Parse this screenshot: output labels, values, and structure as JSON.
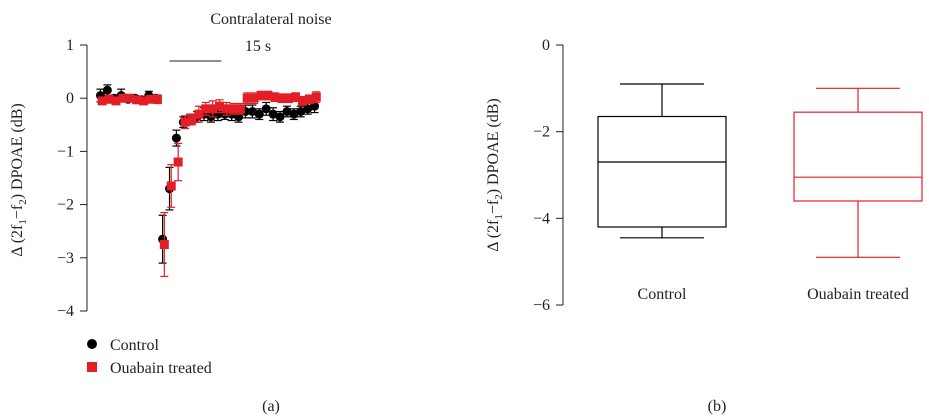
{
  "chart_data": [
    {
      "type": "scatter",
      "panel_label": "(a)",
      "annotation": "Contralateral noise",
      "annotation_duration": "15 s",
      "noise_window": [
        20,
        35
      ],
      "ylabel_parts": [
        "Δ (2f",
        "1",
        "−f",
        "2",
        ") DPOAE (dB)"
      ],
      "ylim": [
        -4,
        1
      ],
      "yticks": [
        1,
        0,
        -1,
        -2,
        -3,
        -4
      ],
      "ytick_labels": [
        "1",
        "0",
        "−1",
        "−2",
        "−3",
        "−4"
      ],
      "xlim": [
        -1,
        63
      ],
      "series": [
        {
          "name": "Control",
          "color": "#000000",
          "marker": "circle",
          "x": [
            0,
            2,
            4,
            6,
            8,
            10,
            12,
            14,
            16,
            18,
            20,
            22,
            24,
            26,
            28,
            30,
            32,
            34,
            36,
            38,
            40,
            42,
            44,
            46,
            48,
            50,
            52,
            54,
            56,
            58,
            60,
            62
          ],
          "y": [
            0.05,
            0.15,
            0.0,
            0.05,
            -0.02,
            0.0,
            -0.03,
            0.05,
            0.0,
            -2.65,
            -1.7,
            -0.75,
            -0.45,
            -0.4,
            -0.35,
            -0.3,
            -0.35,
            -0.3,
            -0.3,
            -0.3,
            -0.35,
            -0.25,
            -0.25,
            -0.3,
            -0.2,
            -0.3,
            -0.35,
            -0.25,
            -0.3,
            -0.25,
            -0.2,
            -0.15
          ],
          "err": [
            0.12,
            0.1,
            0.06,
            0.12,
            0.04,
            0.05,
            0.05,
            0.08,
            0.06,
            0.45,
            0.4,
            0.15,
            0.1,
            0.1,
            0.1,
            0.12,
            0.1,
            0.12,
            0.1,
            0.12,
            0.1,
            0.12,
            0.12,
            0.1,
            0.12,
            0.12,
            0.1,
            0.1,
            0.1,
            0.1,
            0.1,
            0.12
          ]
        },
        {
          "name": "Ouabain treated",
          "color": "#e31e24",
          "marker": "square",
          "x": [
            0.5,
            2.5,
            4.5,
            6.5,
            8.5,
            10.5,
            12.5,
            14.5,
            16.5,
            18.5,
            20.5,
            22.5,
            24.5,
            26.5,
            28.5,
            30.5,
            32.5,
            34.5,
            36.5,
            38.5,
            40.5,
            42.5,
            44.5,
            46.5,
            48.5,
            50.5,
            52.5,
            54.5,
            56.5,
            58.5,
            60.5,
            62.5
          ],
          "y": [
            -0.05,
            -0.02,
            -0.05,
            0.0,
            0.0,
            -0.03,
            -0.05,
            -0.02,
            -0.02,
            -2.75,
            -1.65,
            -1.2,
            -0.45,
            -0.4,
            -0.3,
            -0.2,
            -0.2,
            -0.15,
            -0.2,
            -0.2,
            -0.2,
            0.0,
            0.0,
            0.05,
            0.05,
            0.02,
            0.0,
            0.0,
            0.02,
            -0.05,
            -0.02,
            0.02
          ],
          "err": [
            0.06,
            0.06,
            0.05,
            0.06,
            0.05,
            0.06,
            0.05,
            0.05,
            0.08,
            0.6,
            0.4,
            0.35,
            0.12,
            0.1,
            0.15,
            0.12,
            0.15,
            0.12,
            0.12,
            0.1,
            0.1,
            0.1,
            0.1,
            0.08,
            0.08,
            0.08,
            0.08,
            0.08,
            0.08,
            0.08,
            0.08,
            0.1
          ]
        }
      ],
      "legend": [
        "Control",
        "Ouabain treated"
      ],
      "legend_position": "bottom-left"
    },
    {
      "type": "box",
      "panel_label": "(b)",
      "ylabel_parts": [
        "Δ (2f",
        "1",
        "−f",
        "2",
        ") DPOAE (dB)"
      ],
      "ylim": [
        -6,
        0
      ],
      "yticks": [
        0,
        -2,
        -4,
        -6
      ],
      "ytick_labels": [
        "0",
        "−2",
        "−4",
        "−6"
      ],
      "categories": [
        "Control",
        "Ouabain treated"
      ],
      "boxes": [
        {
          "name": "Control",
          "color": "#000000",
          "min": -4.45,
          "q1": -4.2,
          "median": -2.7,
          "q3": -1.65,
          "max": -0.9
        },
        {
          "name": "Ouabain treated",
          "color": "#e31e24",
          "min": -4.9,
          "q1": -3.6,
          "median": -3.05,
          "q3": -1.55,
          "max": -1.0
        }
      ]
    }
  ]
}
